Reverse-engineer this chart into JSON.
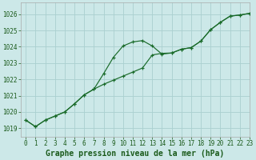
{
  "title": "Graphe pression niveau de la mer (hPa)",
  "bg_color": "#cce8e8",
  "grid_color": "#aad0d0",
  "line_color": "#1a6b2a",
  "xlim": [
    -0.5,
    23
  ],
  "ylim": [
    1018.5,
    1026.7
  ],
  "xticks": [
    0,
    1,
    2,
    3,
    4,
    5,
    6,
    7,
    8,
    9,
    10,
    11,
    12,
    13,
    14,
    15,
    16,
    17,
    18,
    19,
    20,
    21,
    22,
    23
  ],
  "yticks": [
    1019,
    1020,
    1021,
    1022,
    1023,
    1024,
    1025,
    1026
  ],
  "series1_x": [
    0,
    1,
    2,
    3,
    4,
    5,
    6,
    7,
    8,
    9,
    10,
    11,
    12,
    13,
    14,
    15,
    16,
    17,
    18,
    19,
    20,
    21,
    22,
    23
  ],
  "series1_y": [
    1019.5,
    1019.1,
    1019.5,
    1019.75,
    1020.0,
    1020.5,
    1021.05,
    1021.4,
    1022.35,
    1023.35,
    1024.05,
    1024.3,
    1024.38,
    1024.05,
    1023.55,
    1023.62,
    1023.85,
    1023.95,
    1024.35,
    1025.05,
    1025.5,
    1025.88,
    1025.95,
    1026.05
  ],
  "series2_x": [
    0,
    1,
    2,
    3,
    4,
    5,
    6,
    7,
    8,
    9,
    10,
    11,
    12,
    13,
    14,
    15,
    16,
    17,
    18,
    19,
    20,
    21,
    22,
    23
  ],
  "series2_y": [
    1019.5,
    1019.1,
    1019.5,
    1019.75,
    1020.0,
    1020.5,
    1021.05,
    1021.4,
    1021.7,
    1021.95,
    1022.2,
    1022.45,
    1022.7,
    1023.5,
    1023.6,
    1023.62,
    1023.85,
    1023.95,
    1024.35,
    1025.05,
    1025.5,
    1025.88,
    1025.95,
    1026.05
  ],
  "title_fontsize": 7.0,
  "tick_fontsize": 5.5
}
